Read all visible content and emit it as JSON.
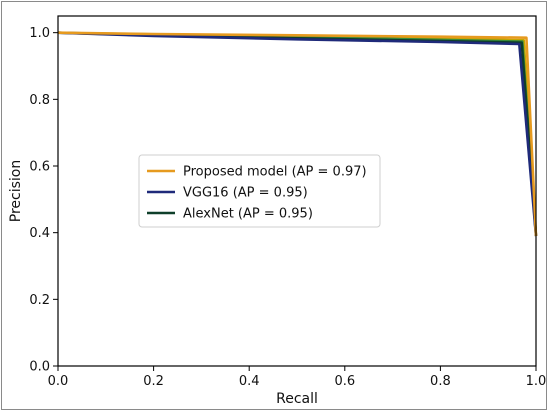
{
  "chart_data": {
    "type": "line",
    "title": "",
    "xlabel": "Recall",
    "ylabel": "Precision",
    "xlim": [
      0.0,
      1.0
    ],
    "ylim": [
      0.0,
      1.05
    ],
    "xticks": [
      "0.0",
      "0.2",
      "0.4",
      "0.6",
      "0.8",
      "1.0"
    ],
    "yticks": [
      "0.0",
      "0.2",
      "0.4",
      "0.6",
      "0.8",
      "1.0"
    ],
    "grid": false,
    "legend_position": "center-left",
    "series": [
      {
        "name": "Proposed model (AP = 0.97)",
        "color": "#e69a1f",
        "points": [
          [
            0.0,
            1.0
          ],
          [
            0.2,
            0.996
          ],
          [
            0.5,
            0.992
          ],
          [
            0.8,
            0.988
          ],
          [
            0.98,
            0.985
          ],
          [
            1.0,
            0.39
          ]
        ]
      },
      {
        "name": "VGG16 (AP = 0.95)",
        "color": "#1f2a7a",
        "points": [
          [
            0.0,
            1.0
          ],
          [
            0.2,
            0.99
          ],
          [
            0.5,
            0.98
          ],
          [
            0.8,
            0.972
          ],
          [
            0.965,
            0.966
          ],
          [
            1.0,
            0.39
          ]
        ]
      },
      {
        "name": "AlexNet (AP = 0.95)",
        "color": "#0f3f2a",
        "points": [
          [
            0.0,
            1.0
          ],
          [
            0.2,
            0.992
          ],
          [
            0.5,
            0.983
          ],
          [
            0.8,
            0.975
          ],
          [
            0.97,
            0.97
          ],
          [
            1.0,
            0.39
          ]
        ]
      }
    ],
    "extra_lines": [
      {
        "color": "#c7a600",
        "points": [
          [
            0.0,
            1.0
          ],
          [
            0.3,
            0.994
          ],
          [
            0.6,
            0.99
          ],
          [
            0.975,
            0.978
          ],
          [
            1.0,
            0.4
          ]
        ]
      },
      {
        "color": "#3a8a3a",
        "points": [
          [
            0.0,
            1.0
          ],
          [
            0.3,
            0.99
          ],
          [
            0.6,
            0.985
          ],
          [
            0.972,
            0.974
          ],
          [
            1.0,
            0.395
          ]
        ]
      }
    ]
  }
}
